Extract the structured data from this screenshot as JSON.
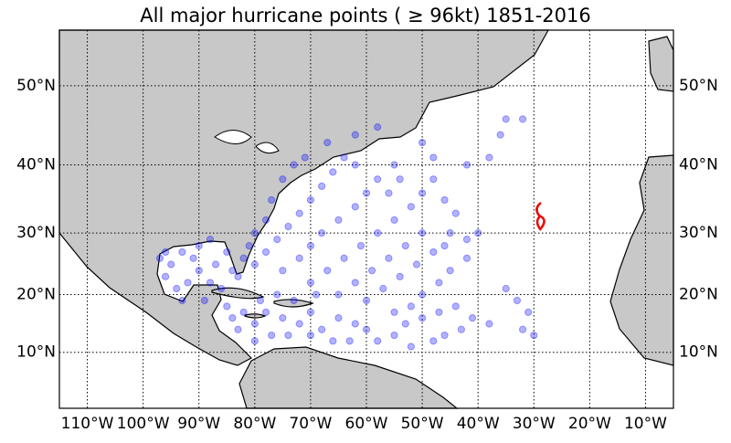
{
  "chart_data": {
    "type": "scatter",
    "title": "All major hurricane points ( ≥ 96kt) 1851-2016",
    "color": "#0000ff",
    "grid": true,
    "projection": "mercator",
    "xlim": [
      -115,
      -5
    ],
    "ylim": [
      0,
      56
    ],
    "xticks": [
      {
        "value": -110,
        "label": "110°W"
      },
      {
        "value": -100,
        "label": "100°W"
      },
      {
        "value": -90,
        "label": "90°W"
      },
      {
        "value": -80,
        "label": "80°W"
      },
      {
        "value": -70,
        "label": "70°W"
      },
      {
        "value": -60,
        "label": "60°W"
      },
      {
        "value": -50,
        "label": "50°W"
      },
      {
        "value": -40,
        "label": "40°W"
      },
      {
        "value": -30,
        "label": "30°W"
      },
      {
        "value": -20,
        "label": "20°W"
      },
      {
        "value": -10,
        "label": "10°W"
      }
    ],
    "yticks": [
      {
        "value": 10,
        "label": "10°N"
      },
      {
        "value": 20,
        "label": "20°N"
      },
      {
        "value": 30,
        "label": "30°N"
      },
      {
        "value": 40,
        "label": "40°N"
      },
      {
        "value": 50,
        "label": "50°N"
      }
    ],
    "x": [
      -95,
      -93,
      -90,
      -88,
      -85,
      -92,
      -94,
      -96,
      -90,
      -87,
      -84,
      -86,
      -89,
      -83,
      -91,
      -96,
      -97,
      -93,
      -88,
      -82,
      -85,
      -82,
      -80,
      -78,
      -75,
      -72,
      -70,
      -68,
      -65,
      -62,
      -60,
      -77,
      -74,
      -80,
      -83,
      -70,
      -66,
      -63,
      -79,
      -76,
      -73,
      -69,
      -84,
      -80,
      -78,
      -76,
      -74,
      -72,
      -70,
      -68,
      -66,
      -64,
      -75,
      -72,
      -70,
      -68,
      -65,
      -62,
      -60,
      -58,
      -55,
      -70,
      -67,
      -64,
      -61,
      -58,
      -55,
      -52,
      -50,
      -48,
      -65,
      -62,
      -59,
      -56,
      -53,
      -50,
      -60,
      -57,
      -54,
      -51,
      -48,
      -45,
      -55,
      -52,
      -50,
      -47,
      -45,
      -53,
      -50,
      -47,
      -44,
      -41,
      -38,
      -46,
      -43,
      -48,
      -52,
      -40,
      -42,
      -44,
      -46,
      -48,
      -50,
      -42,
      -38,
      -35,
      -32,
      -36,
      -35,
      -33,
      -31,
      -30,
      -32,
      -77,
      -75,
      -73,
      -71,
      -67,
      -62,
      -58,
      -78,
      -80,
      -81,
      -62,
      -56,
      -54,
      -46,
      -42,
      -58,
      -55
    ],
    "values": [
      25,
      27,
      28,
      29,
      27,
      22,
      21,
      23,
      24,
      25,
      24,
      21,
      19,
      23,
      26,
      27,
      26,
      19,
      22,
      26,
      18,
      17,
      15,
      17,
      16,
      15,
      17,
      14,
      16,
      15,
      14,
      13,
      13,
      12,
      14,
      13,
      12,
      12,
      19,
      20,
      19,
      20,
      16,
      25,
      27,
      29,
      31,
      33,
      35,
      37,
      39,
      41,
      24,
      26,
      28,
      30,
      32,
      34,
      36,
      38,
      40,
      22,
      24,
      26,
      28,
      30,
      32,
      34,
      36,
      38,
      20,
      22,
      24,
      26,
      28,
      30,
      19,
      21,
      23,
      25,
      27,
      30,
      17,
      18,
      20,
      22,
      24,
      15,
      16,
      17,
      18,
      16,
      15,
      13,
      14,
      12,
      11,
      30,
      29,
      33,
      35,
      41,
      43,
      40,
      41,
      46,
      46,
      44,
      21,
      19,
      17,
      13,
      14,
      35,
      38,
      40,
      41,
      43,
      44,
      45,
      32,
      30,
      28,
      40,
      36,
      38,
      28,
      26,
      12,
      13
    ]
  }
}
